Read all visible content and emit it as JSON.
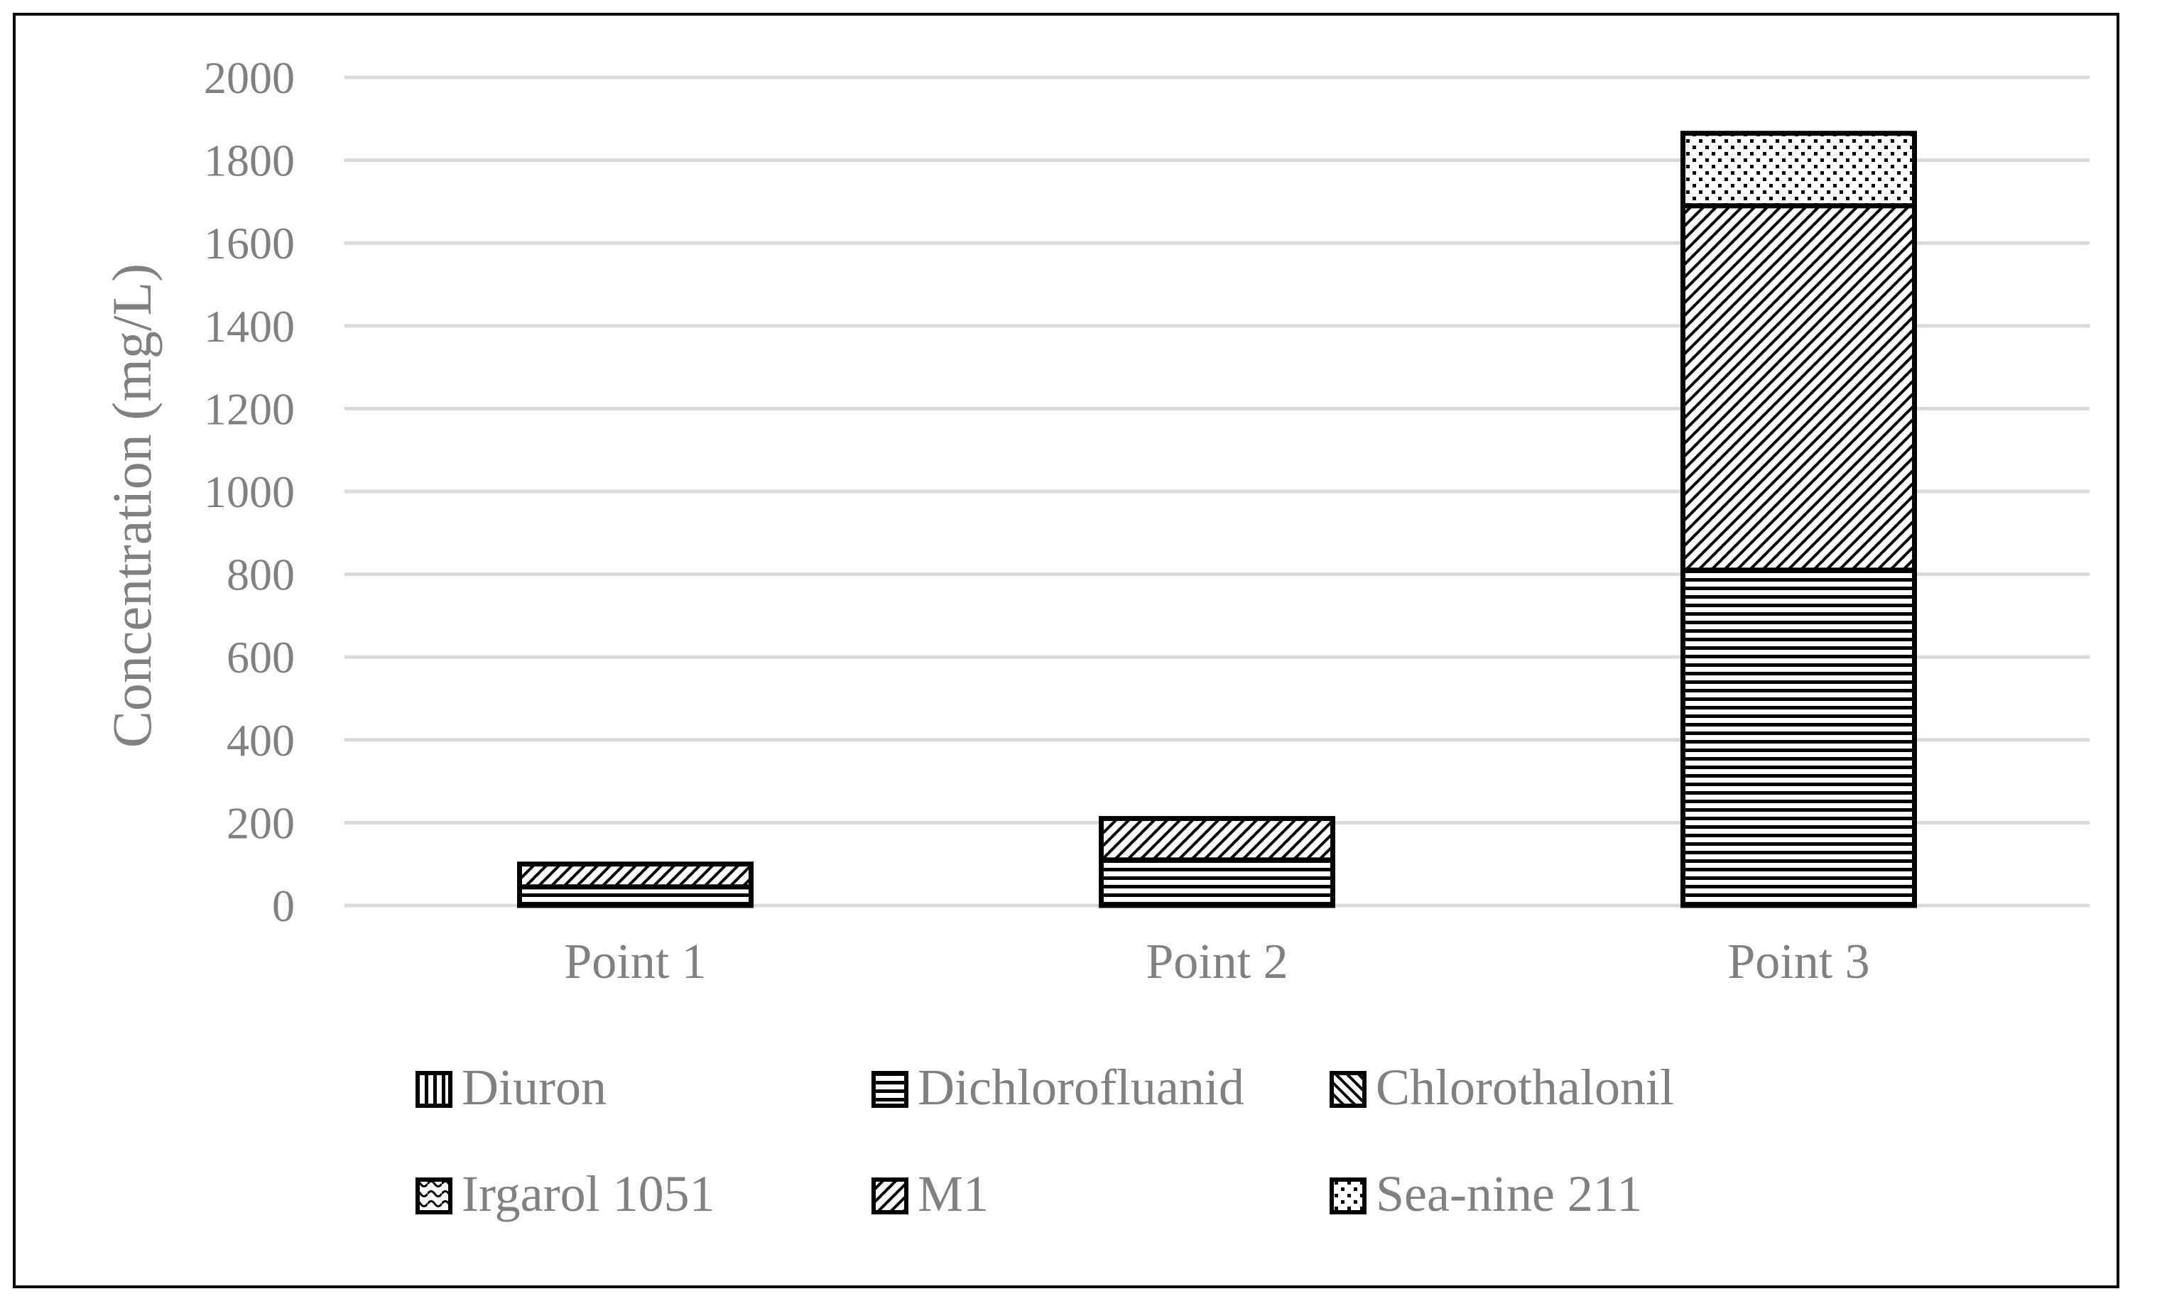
{
  "chart_data": {
    "type": "bar",
    "stacked": true,
    "title": "",
    "xlabel": "",
    "ylabel": "Concentration (mg/L)",
    "ylim": [
      0,
      2000
    ],
    "yticks": [
      "0",
      "200",
      "400",
      "600",
      "800",
      "1000",
      "1200",
      "1400",
      "1600",
      "1800",
      "2000"
    ],
    "grid": true,
    "legend_position": "bottom",
    "categories": [
      "Point 1",
      "Point 2",
      "Point 3"
    ],
    "series": [
      {
        "name": "Diuron",
        "pattern": "vertical-lines",
        "values": [
          0,
          0,
          0
        ]
      },
      {
        "name": "Dichlorofluanid",
        "pattern": "horizontal-lines",
        "values": [
          45,
          110,
          810
        ]
      },
      {
        "name": "Chlorothalonil",
        "pattern": "diagonal-down",
        "values": [
          0,
          0,
          0
        ]
      },
      {
        "name": "Irgarol 1051",
        "pattern": "wave",
        "values": [
          0,
          0,
          0
        ]
      },
      {
        "name": "M1",
        "pattern": "diagonal-up",
        "values": [
          55,
          100,
          880
        ]
      },
      {
        "name": "Sea-nine 211",
        "pattern": "dots",
        "values": [
          0,
          0,
          175
        ]
      }
    ],
    "colors": {
      "bar_outline": "#000000",
      "grid": "#d9d9d9",
      "text": "#808080"
    }
  }
}
